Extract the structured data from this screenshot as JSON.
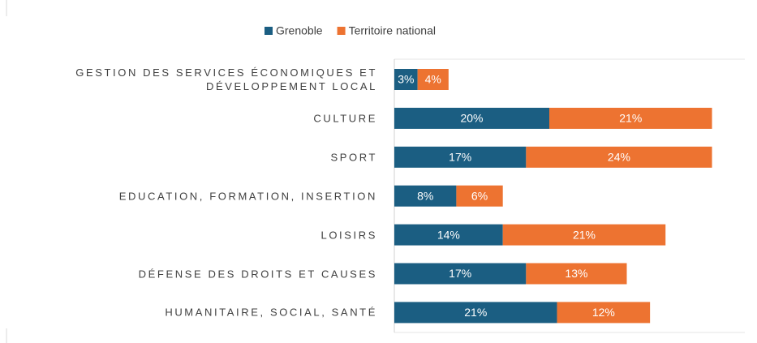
{
  "chart_data": {
    "type": "stacked-barh",
    "categories": [
      "GESTION DES SERVICES ÉCONOMIQUES ET DÉVELOPPEMENT LOCAL",
      "CULTURE",
      "SPORT",
      "EDUCATION, FORMATION, INSERTION",
      "LOISIRS",
      "DÉFENSE DES DROITS ET CAUSES",
      "HUMANITAIRE, SOCIAL, SANTÉ"
    ],
    "series": [
      {
        "name": "Grenoble",
        "color": "#1b5e82",
        "values": [
          3,
          20,
          17,
          8,
          14,
          17,
          21
        ],
        "value_labels": [
          "3%",
          "20%",
          "17%",
          "8%",
          "14%",
          "17%",
          "21%"
        ]
      },
      {
        "name": "Territoire national",
        "color": "#ed7331",
        "values": [
          4,
          21,
          24,
          6,
          21,
          13,
          12
        ],
        "value_labels": [
          "4%",
          "21%",
          "24%",
          "6%",
          "21%",
          "13%",
          "12%"
        ]
      }
    ],
    "legend": "top"
  }
}
